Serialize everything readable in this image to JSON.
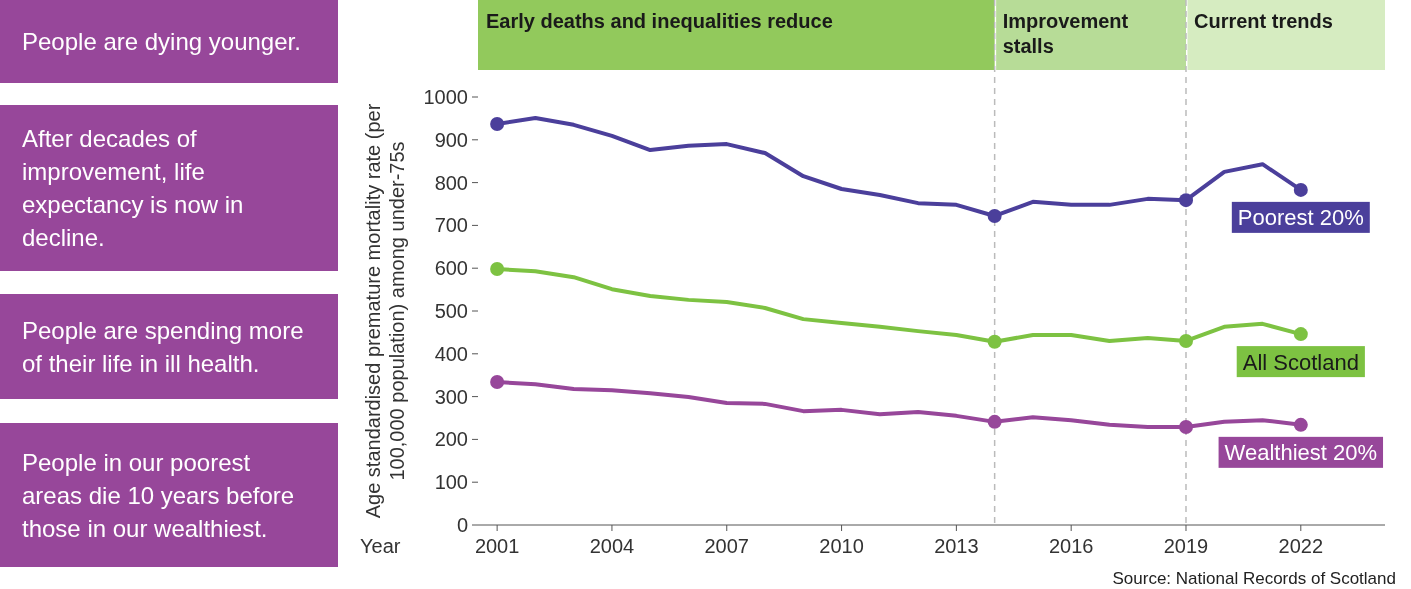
{
  "chart_data": {
    "type": "line",
    "xlabel": "Year",
    "ylabel": "Age standardised premature mortality rate (per 100,000 population) among under-75s",
    "x": [
      2001,
      2002,
      2003,
      2004,
      2005,
      2006,
      2007,
      2008,
      2009,
      2010,
      2011,
      2012,
      2013,
      2014,
      2015,
      2016,
      2017,
      2018,
      2019,
      2020,
      2021,
      2022
    ],
    "series": [
      {
        "name": "Poorest 20%",
        "color": "#4b3f9b",
        "values": [
          937,
          951,
          935,
          909,
          876,
          886,
          890,
          869,
          815,
          785,
          771,
          752,
          748,
          722,
          755,
          748,
          748,
          762,
          759,
          825,
          843,
          783
        ]
      },
      {
        "name": "All Scotland",
        "color": "#7dc242",
        "values": [
          598,
          593,
          579,
          551,
          535,
          526,
          521,
          507,
          481,
          472,
          463,
          453,
          444,
          428,
          444,
          444,
          430,
          437,
          430,
          463,
          470,
          446
        ]
      },
      {
        "name": "Wealthiest 20%",
        "color": "#97479a",
        "values": [
          334,
          329,
          318,
          315,
          308,
          299,
          285,
          283,
          266,
          269,
          259,
          264,
          255,
          241,
          252,
          245,
          234,
          229,
          229,
          241,
          245,
          234
        ]
      }
    ],
    "xlim": [
      2000.5,
      2024.2
    ],
    "xticks": [
      2001,
      2004,
      2007,
      2010,
      2013,
      2016,
      2019,
      2022
    ],
    "ylim": [
      0,
      1000
    ],
    "yticks": [
      0,
      100,
      200,
      300,
      400,
      500,
      600,
      700,
      800,
      900,
      1000
    ],
    "grid": false,
    "line_style": "solid",
    "ref_lines": [
      {
        "axis": "x",
        "value": 2014,
        "label": null,
        "color": "#bbbbbb",
        "line_style": "dashed"
      },
      {
        "axis": "x",
        "value": 2019,
        "label": null,
        "color": "#bbbbbb",
        "line_style": "dashed"
      }
    ],
    "annotations": [
      "Early deaths and inequalities reduce",
      "Improvement stalls",
      "Current trends",
      "People are dying younger.",
      "After decades of improvement, life expectancy is now in decline.",
      "People are spending more of their life in ill health.",
      "People in our poorest areas die 10 years before those in our wealthiest.",
      "Source: National Records of Scotland"
    ]
  }
}
